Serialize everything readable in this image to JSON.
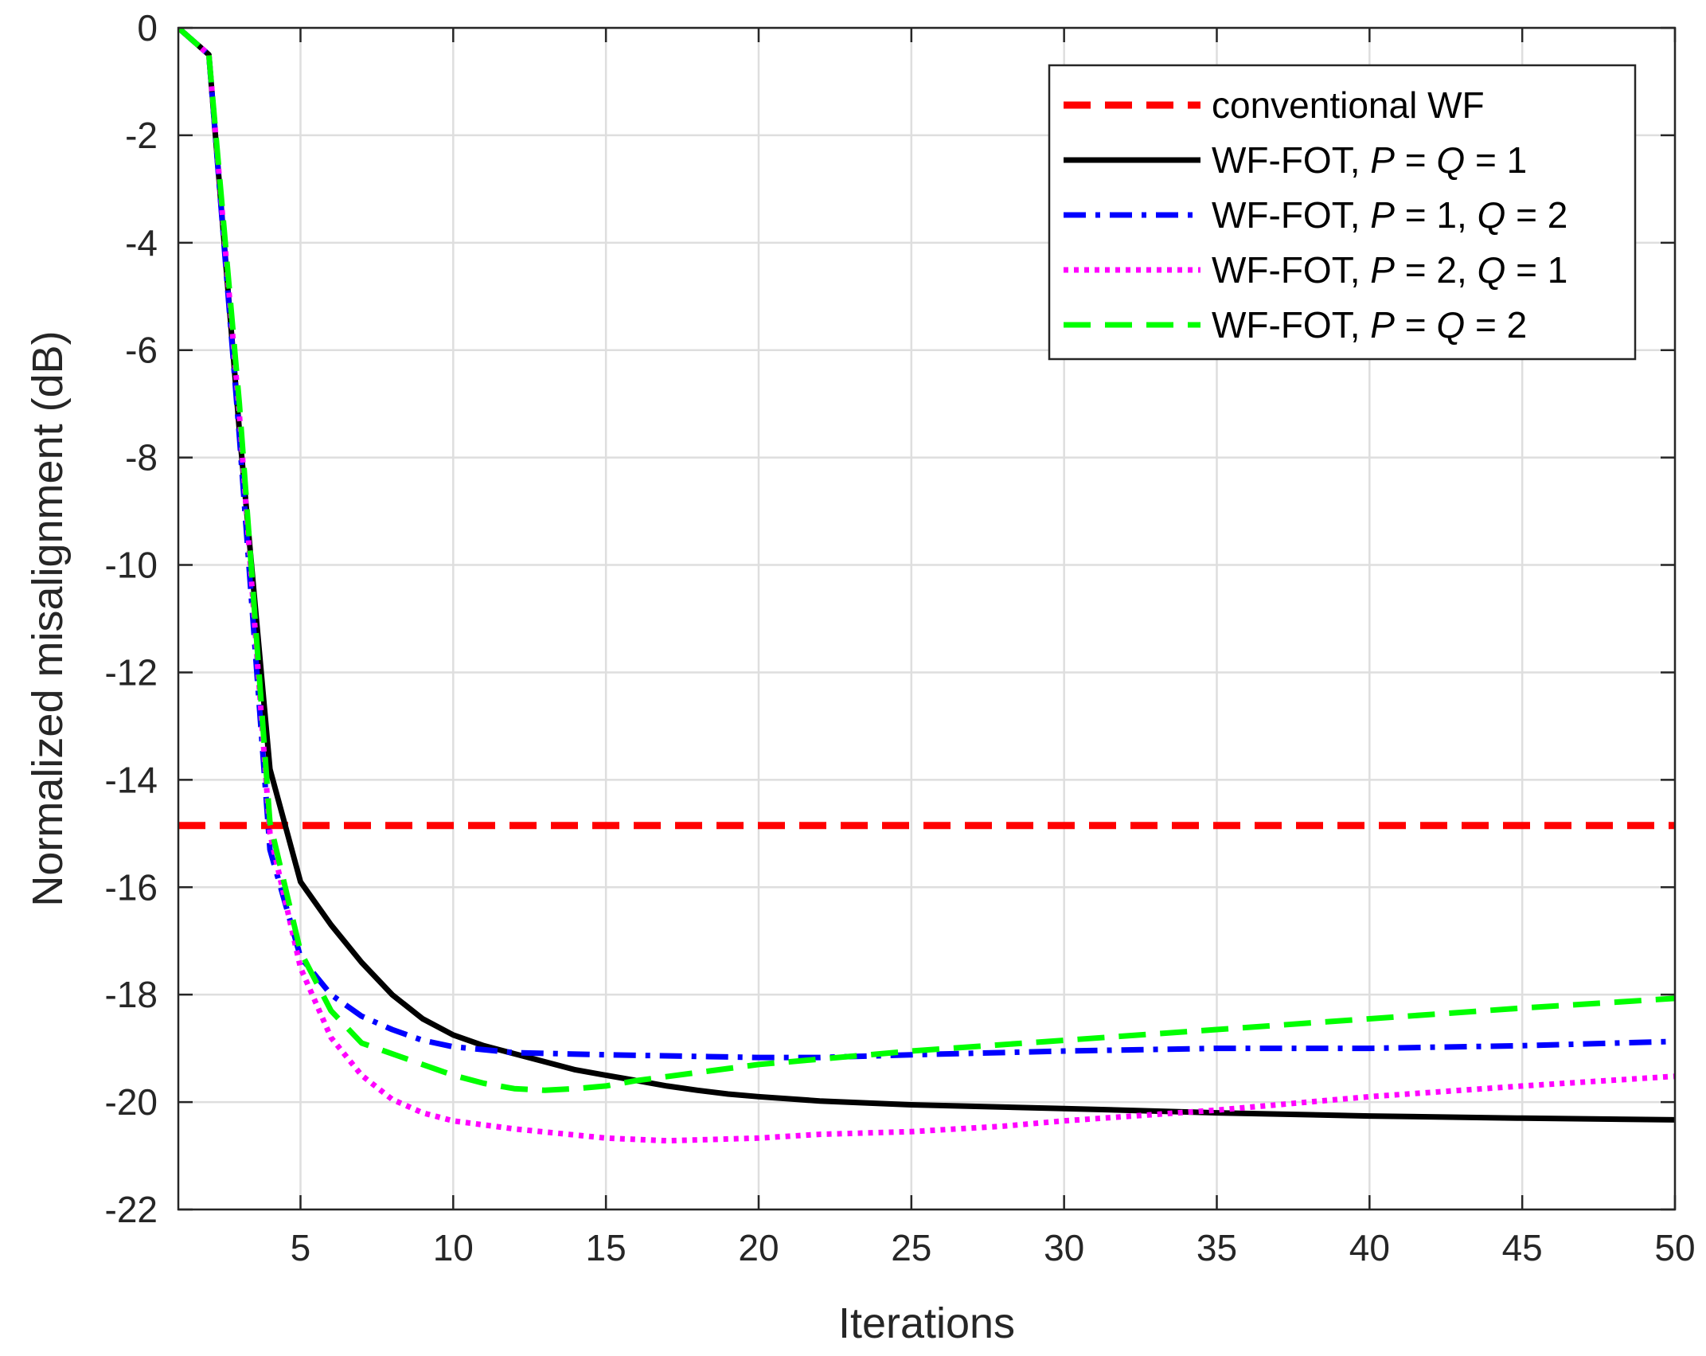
{
  "chart_data": {
    "type": "line",
    "title": "",
    "xlabel": "Iterations",
    "ylabel": "Normalized misalignment (dB)",
    "xlim": [
      1,
      50
    ],
    "ylim": [
      -22,
      0
    ],
    "xticks": [
      5,
      10,
      15,
      20,
      25,
      30,
      35,
      40,
      45,
      50
    ],
    "yticks": [
      0,
      -2,
      -4,
      -6,
      -8,
      -10,
      -12,
      -14,
      -16,
      -18,
      -20,
      -22
    ],
    "grid": true,
    "legend_position": "top-right",
    "series": [
      {
        "name": "conventional WF",
        "legend_parts": [
          {
            "text": "conventional WF",
            "italic": false
          }
        ],
        "color": "#ff0000",
        "style": "dashed",
        "x": [
          1,
          50
        ],
        "y": [
          -14.85,
          -14.85
        ]
      },
      {
        "name": "WF-FOT, P = Q = 1",
        "legend_parts": [
          {
            "text": "WF-FOT, ",
            "italic": false
          },
          {
            "text": "P",
            "italic": true
          },
          {
            "text": " = ",
            "italic": false
          },
          {
            "text": "Q",
            "italic": true
          },
          {
            "text": " = 1",
            "italic": false
          }
        ],
        "color": "#000000",
        "style": "solid",
        "x": [
          1,
          2,
          3,
          4,
          5,
          6,
          7,
          8,
          9,
          10,
          11,
          12,
          13,
          14,
          15,
          16,
          17,
          18,
          19,
          20,
          22,
          25,
          30,
          35,
          40,
          45,
          50
        ],
        "y": [
          0,
          -0.5,
          -7.5,
          -13.8,
          -15.9,
          -16.7,
          -17.4,
          -18.0,
          -18.45,
          -18.75,
          -18.95,
          -19.1,
          -19.25,
          -19.4,
          -19.5,
          -19.6,
          -19.7,
          -19.78,
          -19.85,
          -19.9,
          -19.98,
          -20.05,
          -20.12,
          -20.2,
          -20.26,
          -20.3,
          -20.33
        ]
      },
      {
        "name": "WF-FOT, P = 1, Q = 2",
        "legend_parts": [
          {
            "text": "WF-FOT, ",
            "italic": false
          },
          {
            "text": "P",
            "italic": true
          },
          {
            "text": " = 1, ",
            "italic": false
          },
          {
            "text": "Q",
            "italic": true
          },
          {
            "text": " = 2",
            "italic": false
          }
        ],
        "color": "#0000ff",
        "style": "dashdot",
        "x": [
          1,
          2,
          3,
          4,
          5,
          6,
          7,
          8,
          9,
          10,
          12,
          15,
          20,
          22,
          25,
          30,
          35,
          40,
          45,
          50
        ],
        "y": [
          0,
          -0.5,
          -7.6,
          -15.3,
          -17.3,
          -18.0,
          -18.4,
          -18.65,
          -18.85,
          -18.97,
          -19.08,
          -19.12,
          -19.17,
          -19.17,
          -19.12,
          -19.05,
          -19.0,
          -19.0,
          -18.95,
          -18.87
        ]
      },
      {
        "name": "WF-FOT, P = 2, Q = 1",
        "legend_parts": [
          {
            "text": "WF-FOT, ",
            "italic": false
          },
          {
            "text": "P",
            "italic": true
          },
          {
            "text": " = 2, ",
            "italic": false
          },
          {
            "text": "Q",
            "italic": true
          },
          {
            "text": " = 1",
            "italic": false
          }
        ],
        "color": "#ff00ff",
        "style": "dotted",
        "x": [
          1,
          2,
          3,
          4,
          5,
          6,
          7,
          8,
          9,
          10,
          12,
          15,
          17,
          20,
          22,
          25,
          28,
          30,
          35,
          40,
          45,
          50
        ],
        "y": [
          0,
          -0.5,
          -7.2,
          -15.0,
          -17.5,
          -18.8,
          -19.5,
          -19.95,
          -20.2,
          -20.35,
          -20.5,
          -20.67,
          -20.72,
          -20.67,
          -20.6,
          -20.55,
          -20.45,
          -20.35,
          -20.15,
          -19.9,
          -19.7,
          -19.52
        ]
      },
      {
        "name": "WF-FOT, P = Q = 2",
        "legend_parts": [
          {
            "text": "WF-FOT, ",
            "italic": false
          },
          {
            "text": "P",
            "italic": true
          },
          {
            "text": " = ",
            "italic": false
          },
          {
            "text": "Q",
            "italic": true
          },
          {
            "text": " = 2",
            "italic": false
          }
        ],
        "color": "#00ff00",
        "style": "dashed",
        "x": [
          1,
          2,
          3,
          4,
          5,
          6,
          7,
          8,
          9,
          10,
          11,
          12,
          13,
          14,
          15,
          16,
          18,
          20,
          25,
          30,
          35,
          40,
          45,
          50
        ],
        "y": [
          0,
          -0.5,
          -7.0,
          -14.8,
          -17.2,
          -18.3,
          -18.9,
          -19.1,
          -19.3,
          -19.5,
          -19.65,
          -19.75,
          -19.78,
          -19.75,
          -19.7,
          -19.6,
          -19.45,
          -19.3,
          -19.05,
          -18.85,
          -18.65,
          -18.45,
          -18.25,
          -18.07
        ]
      }
    ]
  }
}
